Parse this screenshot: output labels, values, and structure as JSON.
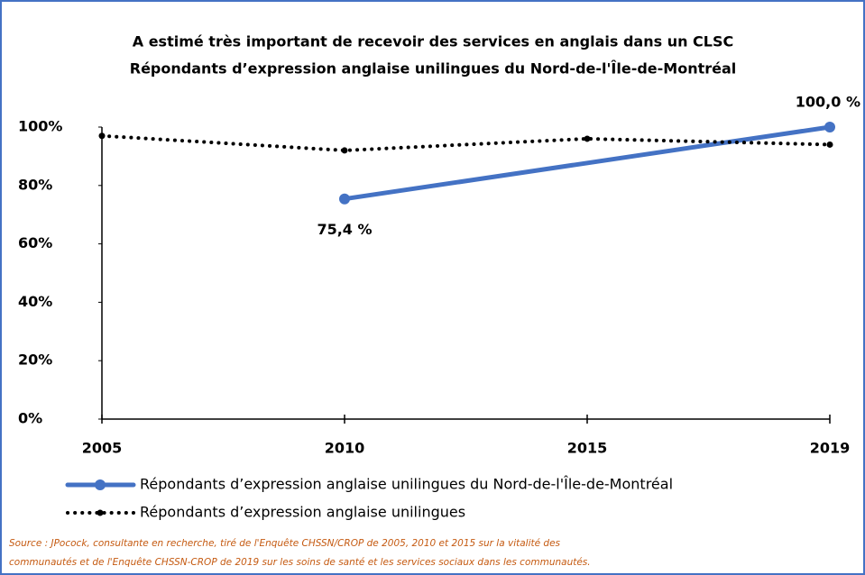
{
  "chart_data": {
    "type": "line",
    "title": "A estimé très important de recevoir des services en anglais  dans un CLSC",
    "subtitle": "Répondants d’expression anglaise unilingues du Nord-de-l'Île-de-Montréal",
    "categories": [
      "2005",
      "2010",
      "2015",
      "2019"
    ],
    "ylim": [
      0,
      100
    ],
    "yticks": [
      {
        "value": 0,
        "label": "0%"
      },
      {
        "value": 20,
        "label": "20%"
      },
      {
        "value": 40,
        "label": "40%"
      },
      {
        "value": 60,
        "label": "60%"
      },
      {
        "value": 80,
        "label": "80%"
      },
      {
        "value": 100,
        "label": "100%"
      }
    ],
    "series": [
      {
        "name": "Répondants d’expression anglaise unilingues du Nord-de-l'Île-de-Montréal",
        "color": "#4472c4",
        "style": "solid",
        "x": [
          "2010",
          "2019"
        ],
        "values": [
          75.4,
          100.0
        ],
        "value_labels": [
          "75,4 %",
          "100,0 %"
        ]
      },
      {
        "name": "Répondants d’expression anglaise unilingues",
        "color": "#000000",
        "style": "dotted",
        "x": [
          "2005",
          "2010",
          "2015",
          "2019"
        ],
        "values": [
          97,
          92,
          96,
          94
        ]
      }
    ],
    "source": [
      "Source : JPocock, consultante en recherche, tiré de l'Enquête CHSSN/CROP de 2005, 2010 et 2015 sur la vitalité des",
      "communautés et de l'Enquête CHSSN-CROP de 2019 sur les soins de santé et les services sociaux dans les communautés."
    ]
  }
}
